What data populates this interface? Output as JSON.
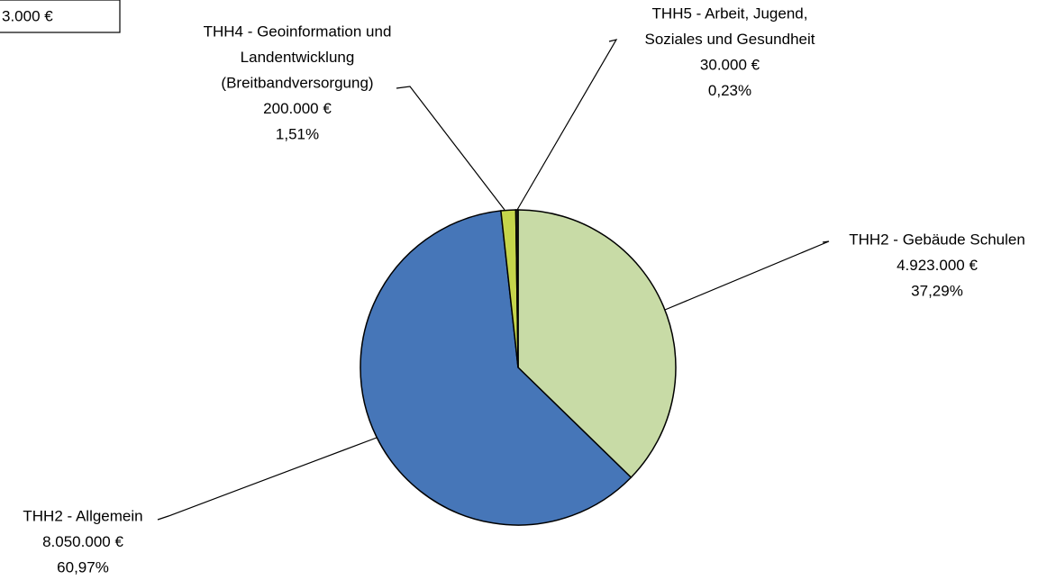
{
  "chart_data": {
    "type": "pie",
    "annotations": [
      "3.000 €"
    ],
    "categories": [
      [
        "THH2 - Gebäude Schulen"
      ],
      [
        "THH2 - Allgemein"
      ],
      [
        "THH4 - Geoinformation und",
        "Landentwicklung",
        "(Breitbandversorgung)"
      ],
      [
        "THH5 - Arbeit, Jugend,",
        "Soziales und Gesundheit"
      ]
    ],
    "values": [
      37.29,
      60.97,
      1.51,
      0.23
    ],
    "value_labels": [
      "37,29%",
      "60,97%",
      "1,51%",
      "0,23%"
    ],
    "amounts": [
      4923000,
      8050000,
      200000,
      30000
    ],
    "amount_labels": [
      "4.923.000 €",
      "8.050.000 €",
      "200.000 €",
      "30.000 €"
    ],
    "colors": [
      "#c8dba6",
      "#4676b8",
      "#c5d54b",
      "#2a2a20"
    ]
  }
}
